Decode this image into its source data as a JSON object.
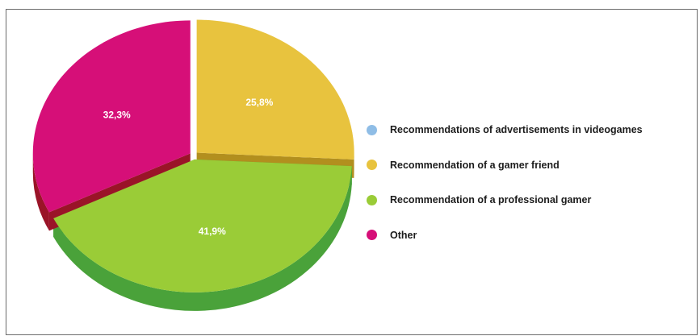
{
  "chart_data": {
    "type": "pie",
    "title": "",
    "slices": [
      {
        "label": "Recommendations of advertisements in videogames",
        "value": 0.0,
        "color": "#8fbde6",
        "value_label": ""
      },
      {
        "label": "Recommendation of a gamer friend",
        "value": 25.8,
        "color": "#e8c33e",
        "value_label": "25,8%"
      },
      {
        "label": "Recommendation of a professional gamer",
        "value": 41.9,
        "color": "#9acc37",
        "value_label": "41,9%"
      },
      {
        "label": "Other",
        "value": 32.3,
        "color": "#d60f78",
        "value_label": "32,3%"
      }
    ],
    "legend_position": "right",
    "style": "3d exploded"
  }
}
